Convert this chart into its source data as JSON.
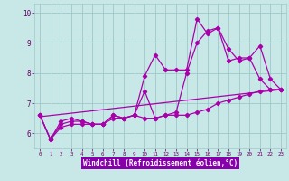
{
  "xlabel": "Windchill (Refroidissement éolien,°C)",
  "xlim": [
    -0.5,
    23.5
  ],
  "ylim": [
    5.5,
    10.3
  ],
  "xticks": [
    0,
    1,
    2,
    3,
    4,
    5,
    6,
    7,
    8,
    9,
    10,
    11,
    12,
    13,
    14,
    15,
    16,
    17,
    18,
    19,
    20,
    21,
    22,
    23
  ],
  "yticks": [
    6,
    7,
    8,
    9,
    10
  ],
  "bg_color": "#c8e8e8",
  "grid_color": "#a0c8c8",
  "line_color": "#aa00aa",
  "xlabel_bg": "#8800aa",
  "xlabel_color": "#ffffff",
  "tick_color": "#660066",
  "curves": [
    {
      "x": [
        0,
        23
      ],
      "y": [
        6.55,
        7.45
      ],
      "marker": false
    },
    {
      "x": [
        0,
        1,
        2,
        3,
        4,
        5,
        6,
        7,
        8,
        9,
        10,
        11,
        12,
        13,
        14,
        15,
        16,
        17,
        18,
        19,
        20,
        21,
        22,
        23
      ],
      "y": [
        6.6,
        5.8,
        6.4,
        6.5,
        6.4,
        6.3,
        6.3,
        6.6,
        6.5,
        6.6,
        6.5,
        6.5,
        6.6,
        6.6,
        6.6,
        6.7,
        6.8,
        7.0,
        7.1,
        7.2,
        7.3,
        7.4,
        7.45,
        7.45
      ],
      "marker": true
    },
    {
      "x": [
        0,
        1,
        2,
        3,
        4,
        5,
        6,
        7,
        8,
        9,
        10,
        11,
        12,
        13,
        14,
        15,
        16,
        17,
        18,
        19,
        20,
        21,
        22,
        23
      ],
      "y": [
        6.6,
        5.8,
        6.3,
        6.4,
        6.4,
        6.3,
        6.3,
        6.6,
        6.5,
        6.6,
        7.9,
        8.6,
        8.1,
        8.1,
        8.1,
        9.8,
        9.3,
        9.5,
        8.8,
        8.4,
        8.5,
        8.9,
        7.8,
        7.45
      ],
      "marker": true
    },
    {
      "x": [
        0,
        1,
        2,
        3,
        4,
        5,
        6,
        7,
        8,
        9,
        10,
        11,
        12,
        13,
        14,
        15,
        16,
        17,
        18,
        19,
        20,
        21,
        22,
        23
      ],
      "y": [
        6.6,
        5.8,
        6.2,
        6.3,
        6.3,
        6.3,
        6.3,
        6.5,
        6.5,
        6.6,
        7.4,
        6.5,
        6.6,
        6.7,
        8.0,
        9.0,
        9.4,
        9.5,
        8.4,
        8.5,
        8.5,
        7.8,
        7.45,
        7.45
      ],
      "marker": true
    }
  ]
}
